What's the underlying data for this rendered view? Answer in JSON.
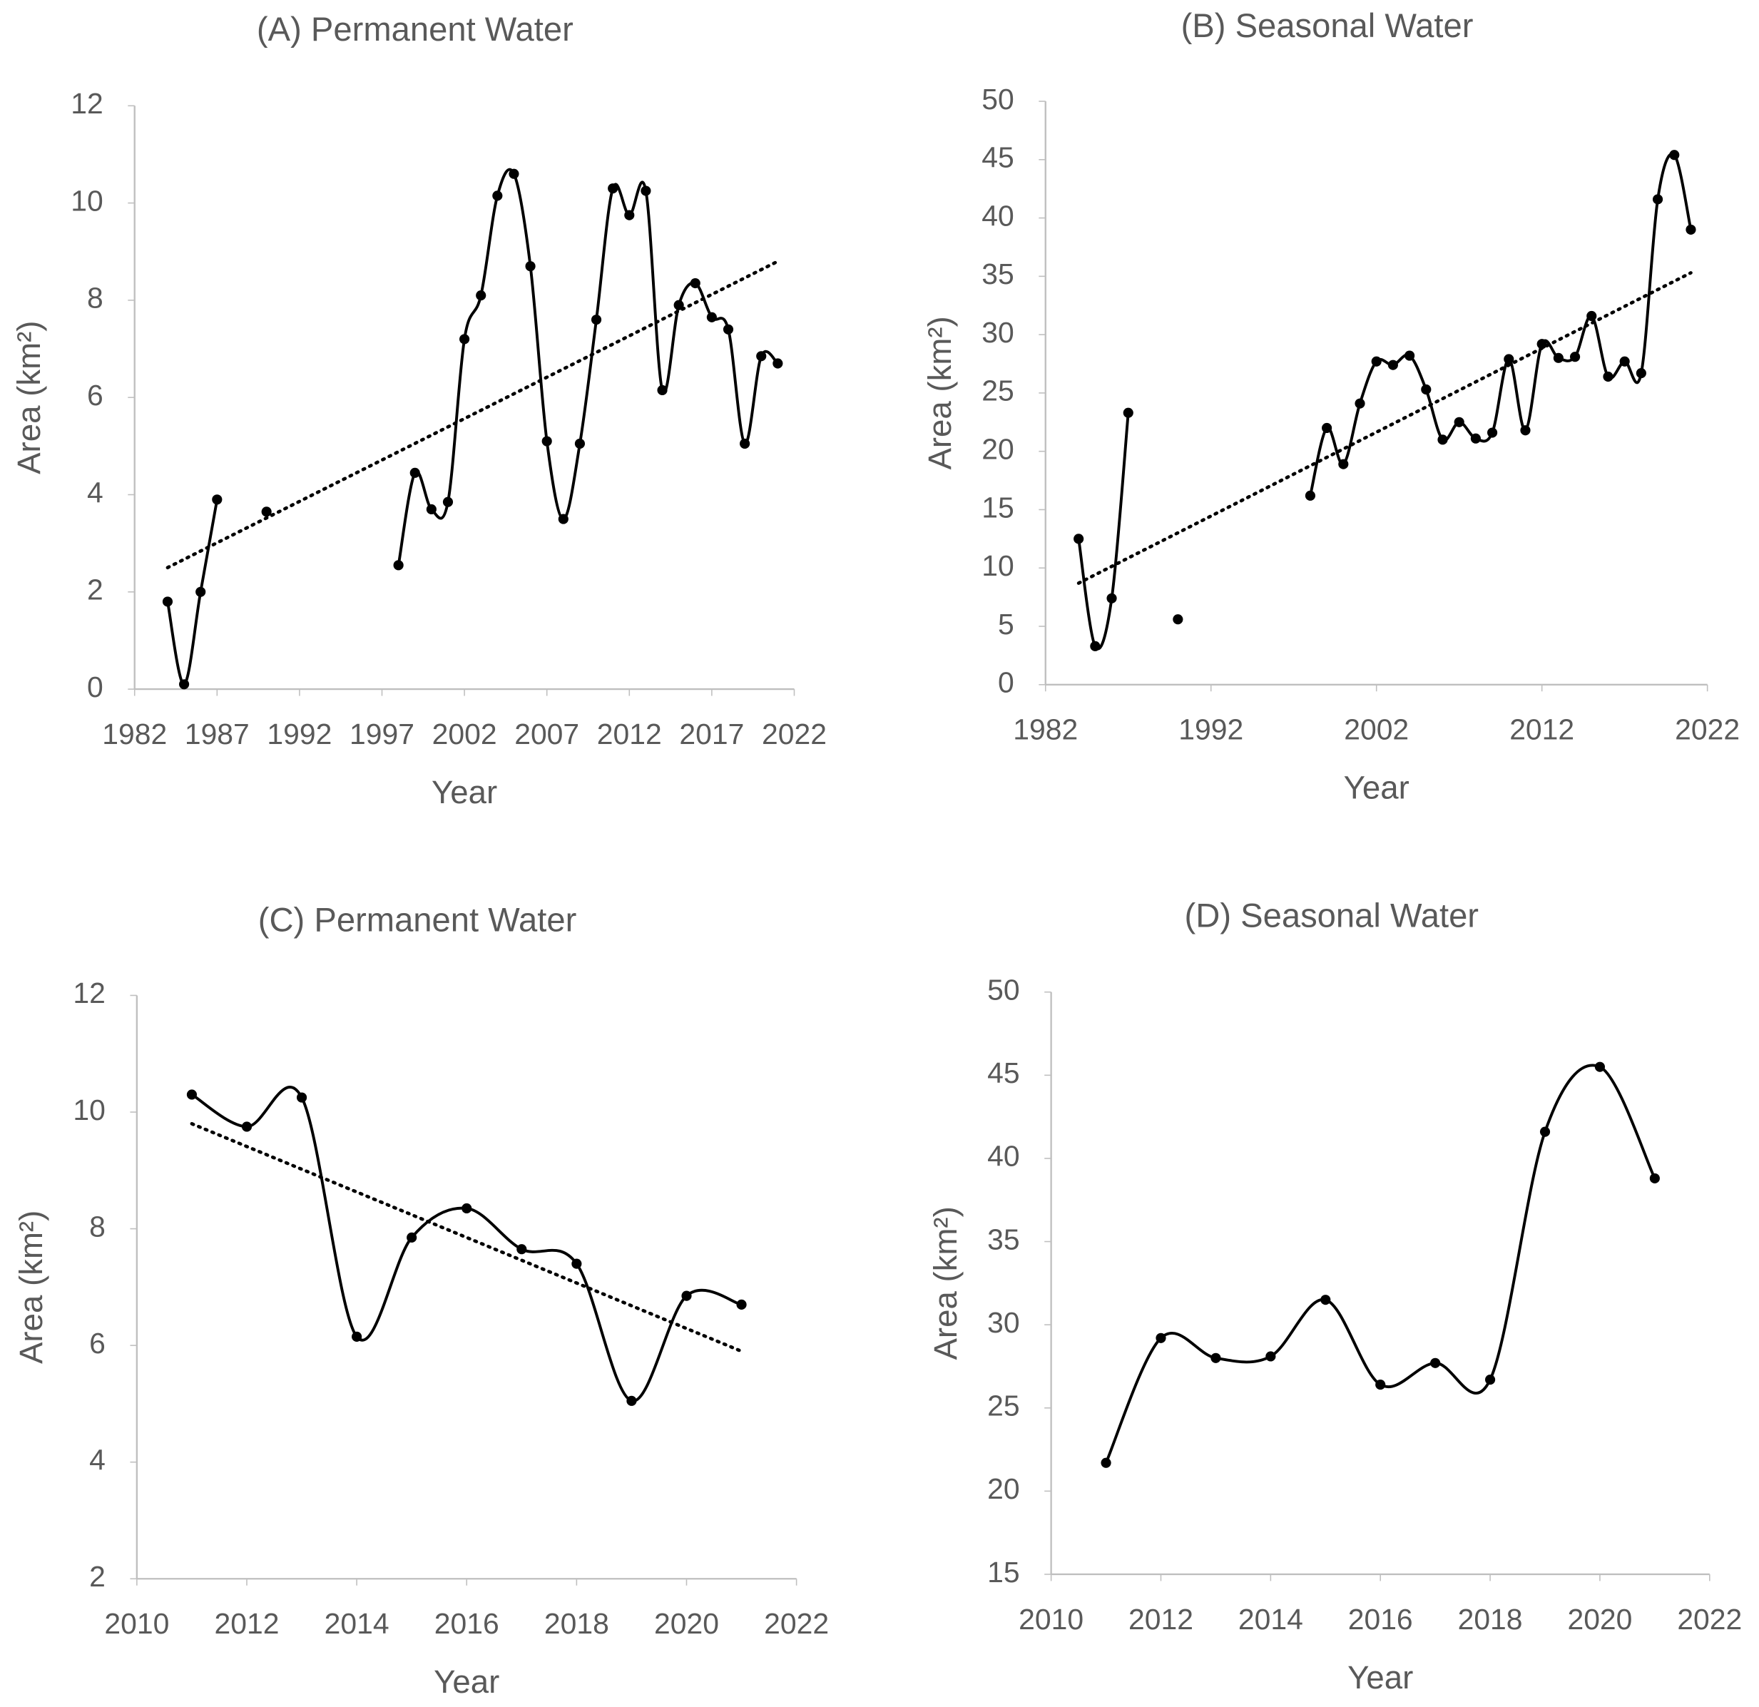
{
  "chart_data": [
    {
      "type": "line",
      "title": "(A) Permanent Water",
      "x_label": "Year",
      "y_label": "Area (km²)",
      "x": [
        1984,
        1985,
        1986,
        1987,
        1988,
        1989,
        1990,
        1991,
        1992,
        1993,
        1994,
        1995,
        1996,
        1997,
        1998,
        1999,
        2000,
        2001,
        2002,
        2003,
        2004,
        2005,
        2006,
        2007,
        2008,
        2009,
        2010,
        2011,
        2012,
        2013,
        2014,
        2015,
        2016,
        2017,
        2018,
        2019,
        2020,
        2021
      ],
      "series": [
        {
          "color": "#000000",
          "values": [
            1.8,
            0.1,
            2.0,
            3.9,
            null,
            null,
            3.65,
            null,
            null,
            null,
            null,
            null,
            null,
            null,
            2.55,
            4.45,
            3.7,
            3.85,
            7.2,
            8.1,
            10.15,
            10.6,
            8.7,
            5.1,
            3.5,
            5.05,
            7.6,
            10.3,
            9.75,
            10.25,
            6.15,
            7.9,
            8.35,
            7.65,
            7.4,
            5.05,
            6.85,
            6.7
          ]
        }
      ],
      "trend": {
        "x": [
          1984,
          2021
        ],
        "values": [
          2.5,
          8.8
        ]
      },
      "xlim": [
        1982,
        2022
      ],
      "xticks": [
        1982,
        1987,
        1992,
        1997,
        2002,
        2007,
        2012,
        2017,
        2022
      ],
      "ylim": [
        0,
        12
      ],
      "yticks": [
        0,
        2,
        4,
        6,
        8,
        10,
        12
      ]
    },
    {
      "type": "line",
      "title": "(B) Seasonal Water",
      "x_label": "Year",
      "y_label": "Area (km²)",
      "x": [
        1984,
        1985,
        1986,
        1987,
        1988,
        1989,
        1990,
        1991,
        1992,
        1993,
        1994,
        1995,
        1996,
        1997,
        1998,
        1999,
        2000,
        2001,
        2002,
        2003,
        2004,
        2005,
        2006,
        2007,
        2008,
        2009,
        2010,
        2011,
        2012,
        2013,
        2014,
        2015,
        2016,
        2017,
        2018,
        2019,
        2020,
        2021
      ],
      "series": [
        {
          "color": "#000000",
          "values": [
            12.5,
            3.3,
            7.4,
            23.3,
            null,
            null,
            5.6,
            null,
            null,
            null,
            null,
            null,
            null,
            null,
            16.2,
            22,
            18.9,
            24.1,
            27.7,
            27.4,
            28.2,
            25.3,
            21,
            22.5,
            21.1,
            21.6,
            27.9,
            21.8,
            29.2,
            28,
            28.1,
            31.6,
            26.4,
            27.7,
            26.7,
            41.6,
            45.4,
            39
          ]
        }
      ],
      "trend": {
        "x": [
          1984,
          2021
        ],
        "values": [
          8.7,
          35.3
        ]
      },
      "xlim": [
        1982,
        2022
      ],
      "xticks": [
        1982,
        1992,
        2002,
        2012,
        2022
      ],
      "ylim": [
        0,
        50
      ],
      "yticks": [
        0,
        5,
        10,
        15,
        20,
        25,
        30,
        35,
        40,
        45,
        50
      ]
    },
    {
      "type": "line",
      "title": "(C) Permanent Water",
      "x_label": "Year",
      "y_label": "Area (km²)",
      "x": [
        2011,
        2012,
        2013,
        2014,
        2015,
        2016,
        2017,
        2018,
        2019,
        2020,
        2021
      ],
      "series": [
        {
          "color": "#000000",
          "values": [
            10.3,
            9.75,
            10.25,
            6.15,
            7.85,
            8.35,
            7.65,
            7.4,
            5.05,
            6.85,
            6.7
          ]
        }
      ],
      "trend": {
        "x": [
          2011,
          2021
        ],
        "values": [
          9.8,
          5.9
        ]
      },
      "xlim": [
        2010,
        2022
      ],
      "xticks": [
        2010,
        2012,
        2014,
        2016,
        2018,
        2020,
        2022
      ],
      "ylim": [
        2,
        12
      ],
      "yticks": [
        2,
        4,
        6,
        8,
        10,
        12
      ]
    },
    {
      "type": "line",
      "title": "(D) Seasonal Water",
      "x_label": "Year",
      "y_label": "Area (km²)",
      "x": [
        2011,
        2012,
        2013,
        2014,
        2015,
        2016,
        2017,
        2018,
        2019,
        2020,
        2021
      ],
      "series": [
        {
          "color": "#000000",
          "values": [
            21.7,
            29.2,
            28,
            28.1,
            31.5,
            26.4,
            27.7,
            26.7,
            41.6,
            45.5,
            38.8
          ]
        }
      ],
      "xlim": [
        2010,
        2022
      ],
      "xticks": [
        2010,
        2012,
        2014,
        2016,
        2018,
        2020,
        2022
      ],
      "ylim": [
        15,
        50
      ],
      "yticks": [
        15,
        20,
        25,
        30,
        35,
        40,
        45,
        50
      ]
    }
  ]
}
